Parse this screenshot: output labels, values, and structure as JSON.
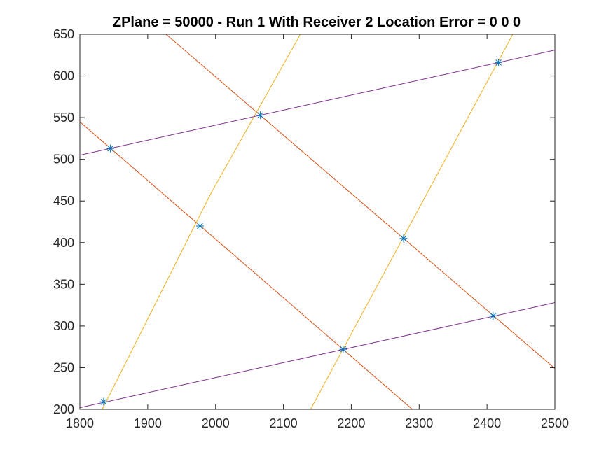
{
  "chart_data": {
    "type": "line",
    "title": "ZPlane = 50000 - Run 1 With Receiver 2 Location Error = 0  0  0",
    "xlabel": "",
    "ylabel": "",
    "xlim": [
      1800,
      2500
    ],
    "ylim": [
      200,
      650
    ],
    "xticks": [
      1800,
      1900,
      2000,
      2100,
      2200,
      2300,
      2400,
      2500
    ],
    "yticks": [
      200,
      250,
      300,
      350,
      400,
      450,
      500,
      550,
      600,
      650
    ],
    "grid": false,
    "series": [
      {
        "color": "#D95319",
        "points": [
          [
            1800,
            545
          ],
          [
            2290,
            200
          ]
        ]
      },
      {
        "color": "#D95319",
        "points": [
          [
            1927,
            650
          ],
          [
            2500,
            249
          ]
        ]
      },
      {
        "color": "#EDB120",
        "points": [
          [
            1833,
            200
          ],
          [
            1993,
            459
          ],
          [
            2125,
            650
          ]
        ]
      },
      {
        "color": "#EDB120",
        "points": [
          [
            2140,
            200
          ],
          [
            2438,
            650
          ]
        ]
      },
      {
        "color": "#7E2F8E",
        "points": [
          [
            1800,
            202
          ],
          [
            2500,
            328
          ]
        ]
      },
      {
        "color": "#7E2F8E",
        "points": [
          [
            1800,
            505
          ],
          [
            2500,
            631
          ]
        ]
      }
    ],
    "markers": {
      "symbol": "*",
      "color": "#0072BD",
      "points": [
        [
          1835,
          209
        ],
        [
          1845,
          513
        ],
        [
          1977,
          420
        ],
        [
          2066,
          553
        ],
        [
          2188,
          272
        ],
        [
          2277,
          405
        ],
        [
          2409,
          312
        ],
        [
          2417,
          616
        ]
      ]
    }
  }
}
